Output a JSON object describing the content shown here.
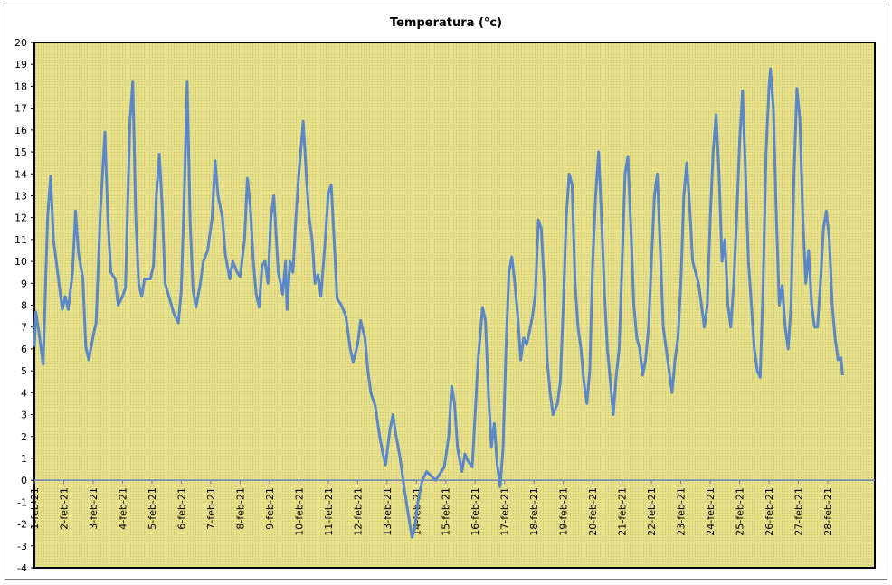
{
  "chart_data": {
    "type": "line",
    "title": "Temperatura (°c)",
    "xlabel": "",
    "ylabel": "",
    "ylim": [
      -4,
      20
    ],
    "yticks": [
      -4,
      -3,
      -2,
      -1,
      0,
      1,
      2,
      3,
      4,
      5,
      6,
      7,
      8,
      9,
      10,
      11,
      12,
      13,
      14,
      15,
      16,
      17,
      18,
      19,
      20
    ],
    "xrange": [
      1,
      29.6
    ],
    "xticks": [
      {
        "x": 1,
        "label": "1-feb-21"
      },
      {
        "x": 2,
        "label": "2-feb-21"
      },
      {
        "x": 3,
        "label": "3-feb-21"
      },
      {
        "x": 4,
        "label": "4-feb-21"
      },
      {
        "x": 5,
        "label": "5-feb-21"
      },
      {
        "x": 6,
        "label": "6-feb-21"
      },
      {
        "x": 7,
        "label": "7-feb-21"
      },
      {
        "x": 8,
        "label": "8-feb-21"
      },
      {
        "x": 9,
        "label": "9-feb-21"
      },
      {
        "x": 10,
        "label": "10-feb-21"
      },
      {
        "x": 11,
        "label": "11-feb-21"
      },
      {
        "x": 12,
        "label": "12-feb-21"
      },
      {
        "x": 13,
        "label": "13-feb-21"
      },
      {
        "x": 14,
        "label": "14-feb-21"
      },
      {
        "x": 15,
        "label": "15-feb-21"
      },
      {
        "x": 16,
        "label": "16-feb-21"
      },
      {
        "x": 17,
        "label": "17-feb-21"
      },
      {
        "x": 18,
        "label": "18-feb-21"
      },
      {
        "x": 19,
        "label": "19-feb-21"
      },
      {
        "x": 20,
        "label": "20-feb-21"
      },
      {
        "x": 21,
        "label": "21-feb-21"
      },
      {
        "x": 22,
        "label": "22-feb-21"
      },
      {
        "x": 23,
        "label": "23-feb-21"
      },
      {
        "x": 24,
        "label": "24-feb-21"
      },
      {
        "x": 25,
        "label": "25-feb-21"
      },
      {
        "x": 26,
        "label": "26-feb-21"
      },
      {
        "x": 27,
        "label": "27-feb-21"
      },
      {
        "x": 28,
        "label": "28-feb-21"
      }
    ],
    "grid": false,
    "legend": "none",
    "colors": {
      "line": "#5b86c8",
      "plot_background": "#e6e08a",
      "zero_line": "#6f7eb5"
    },
    "series": [
      {
        "values": [
          [
            1.0,
            6.1
          ],
          [
            1.05,
            7.7
          ],
          [
            1.15,
            6.8
          ],
          [
            1.3,
            5.3
          ],
          [
            1.45,
            12.0
          ],
          [
            1.55,
            13.9
          ],
          [
            1.65,
            11.0
          ],
          [
            1.8,
            9.4
          ],
          [
            1.95,
            7.8
          ],
          [
            2.05,
            8.4
          ],
          [
            2.15,
            7.8
          ],
          [
            2.3,
            9.5
          ],
          [
            2.4,
            12.3
          ],
          [
            2.5,
            10.4
          ],
          [
            2.65,
            9.2
          ],
          [
            2.75,
            6.1
          ],
          [
            2.85,
            5.5
          ],
          [
            3.0,
            6.6
          ],
          [
            3.1,
            7.2
          ],
          [
            3.25,
            12.4
          ],
          [
            3.4,
            15.9
          ],
          [
            3.5,
            12.0
          ],
          [
            3.6,
            9.5
          ],
          [
            3.75,
            9.2
          ],
          [
            3.85,
            8.0
          ],
          [
            4.0,
            8.4
          ],
          [
            4.1,
            8.8
          ],
          [
            4.25,
            16.4
          ],
          [
            4.35,
            18.2
          ],
          [
            4.45,
            12.0
          ],
          [
            4.55,
            9.0
          ],
          [
            4.65,
            8.4
          ],
          [
            4.75,
            9.2
          ],
          [
            4.95,
            9.2
          ],
          [
            5.05,
            9.8
          ],
          [
            5.15,
            13.0
          ],
          [
            5.25,
            14.9
          ],
          [
            5.35,
            12.5
          ],
          [
            5.45,
            9.0
          ],
          [
            5.6,
            8.3
          ],
          [
            5.75,
            7.6
          ],
          [
            5.9,
            7.2
          ],
          [
            6.0,
            8.7
          ],
          [
            6.1,
            13.0
          ],
          [
            6.2,
            18.2
          ],
          [
            6.3,
            11.8
          ],
          [
            6.4,
            8.7
          ],
          [
            6.5,
            7.9
          ],
          [
            6.65,
            9.0
          ],
          [
            6.75,
            10.0
          ],
          [
            6.9,
            10.5
          ],
          [
            7.05,
            12.0
          ],
          [
            7.15,
            14.6
          ],
          [
            7.25,
            13.0
          ],
          [
            7.4,
            12.0
          ],
          [
            7.5,
            10.3
          ],
          [
            7.65,
            9.2
          ],
          [
            7.75,
            10.0
          ],
          [
            7.9,
            9.5
          ],
          [
            8.0,
            9.3
          ],
          [
            8.15,
            11.0
          ],
          [
            8.25,
            13.8
          ],
          [
            8.35,
            12.5
          ],
          [
            8.45,
            10.0
          ],
          [
            8.55,
            8.5
          ],
          [
            8.65,
            7.9
          ],
          [
            8.75,
            9.8
          ],
          [
            8.85,
            10.0
          ],
          [
            8.95,
            9.0
          ],
          [
            9.05,
            12.0
          ],
          [
            9.15,
            13.0
          ],
          [
            9.3,
            9.5
          ],
          [
            9.45,
            8.5
          ],
          [
            9.55,
            10.0
          ],
          [
            9.6,
            7.8
          ],
          [
            9.7,
            10.0
          ],
          [
            9.8,
            9.5
          ],
          [
            9.9,
            12.0
          ],
          [
            10.0,
            14.0
          ],
          [
            10.15,
            16.4
          ],
          [
            10.25,
            14.0
          ],
          [
            10.35,
            12.0
          ],
          [
            10.45,
            11.0
          ],
          [
            10.55,
            9.0
          ],
          [
            10.65,
            9.4
          ],
          [
            10.75,
            8.4
          ],
          [
            10.9,
            11.0
          ],
          [
            11.0,
            13.1
          ],
          [
            11.1,
            13.5
          ],
          [
            11.2,
            11.0
          ],
          [
            11.3,
            8.3
          ],
          [
            11.45,
            8.0
          ],
          [
            11.6,
            7.5
          ],
          [
            11.75,
            6.0
          ],
          [
            11.85,
            5.4
          ],
          [
            12.0,
            6.2
          ],
          [
            12.1,
            7.3
          ],
          [
            12.25,
            6.5
          ],
          [
            12.35,
            5.0
          ],
          [
            12.45,
            4.0
          ],
          [
            12.6,
            3.4
          ],
          [
            12.75,
            2.0
          ],
          [
            12.85,
            1.3
          ],
          [
            12.95,
            0.7
          ],
          [
            13.1,
            2.3
          ],
          [
            13.2,
            3.0
          ],
          [
            13.3,
            2.1
          ],
          [
            13.45,
            1.0
          ],
          [
            13.6,
            -0.5
          ],
          [
            13.75,
            -1.8
          ],
          [
            13.85,
            -2.6
          ],
          [
            13.95,
            -2.2
          ],
          [
            14.05,
            -1.0
          ],
          [
            14.2,
            0.0
          ],
          [
            14.35,
            0.4
          ],
          [
            14.5,
            0.2
          ],
          [
            14.65,
            0.0
          ],
          [
            14.8,
            0.3
          ],
          [
            14.95,
            0.6
          ],
          [
            15.1,
            2.0
          ],
          [
            15.2,
            4.3
          ],
          [
            15.3,
            3.5
          ],
          [
            15.4,
            1.5
          ],
          [
            15.55,
            0.4
          ],
          [
            15.65,
            1.2
          ],
          [
            15.75,
            0.9
          ],
          [
            15.9,
            0.6
          ],
          [
            16.0,
            3.0
          ],
          [
            16.1,
            5.5
          ],
          [
            16.25,
            7.9
          ],
          [
            16.35,
            7.3
          ],
          [
            16.45,
            4.0
          ],
          [
            16.55,
            1.5
          ],
          [
            16.65,
            2.6
          ],
          [
            16.75,
            0.7
          ],
          [
            16.85,
            -0.3
          ],
          [
            16.95,
            1.5
          ],
          [
            17.05,
            6.0
          ],
          [
            17.15,
            9.5
          ],
          [
            17.25,
            10.2
          ],
          [
            17.35,
            9.0
          ],
          [
            17.45,
            7.5
          ],
          [
            17.55,
            5.5
          ],
          [
            17.65,
            6.5
          ],
          [
            17.75,
            6.2
          ],
          [
            17.85,
            6.8
          ],
          [
            17.95,
            7.5
          ],
          [
            18.05,
            8.5
          ],
          [
            18.15,
            11.9
          ],
          [
            18.25,
            11.5
          ],
          [
            18.35,
            9.0
          ],
          [
            18.45,
            5.5
          ],
          [
            18.55,
            4.0
          ],
          [
            18.65,
            3.0
          ],
          [
            18.8,
            3.5
          ],
          [
            18.9,
            4.5
          ],
          [
            19.0,
            8.0
          ],
          [
            19.1,
            12.0
          ],
          [
            19.2,
            14.0
          ],
          [
            19.3,
            13.5
          ],
          [
            19.4,
            9.0
          ],
          [
            19.5,
            7.0
          ],
          [
            19.6,
            6.0
          ],
          [
            19.7,
            4.5
          ],
          [
            19.8,
            3.5
          ],
          [
            19.9,
            5.0
          ],
          [
            20.0,
            10.0
          ],
          [
            20.1,
            13.0
          ],
          [
            20.2,
            15.0
          ],
          [
            20.3,
            12.0
          ],
          [
            20.4,
            8.5
          ],
          [
            20.5,
            6.0
          ],
          [
            20.6,
            4.5
          ],
          [
            20.7,
            3.0
          ],
          [
            20.8,
            4.8
          ],
          [
            20.9,
            6.0
          ],
          [
            21.0,
            10.0
          ],
          [
            21.1,
            14.0
          ],
          [
            21.2,
            14.8
          ],
          [
            21.3,
            11.5
          ],
          [
            21.4,
            8.0
          ],
          [
            21.5,
            6.5
          ],
          [
            21.6,
            6.0
          ],
          [
            21.7,
            4.8
          ],
          [
            21.8,
            5.5
          ],
          [
            21.9,
            7.0
          ],
          [
            22.0,
            10.0
          ],
          [
            22.1,
            13.0
          ],
          [
            22.2,
            14.0
          ],
          [
            22.3,
            10.5
          ],
          [
            22.4,
            7.0
          ],
          [
            22.5,
            6.0
          ],
          [
            22.6,
            5.0
          ],
          [
            22.7,
            4.0
          ],
          [
            22.8,
            5.5
          ],
          [
            22.9,
            6.5
          ],
          [
            23.0,
            9.0
          ],
          [
            23.1,
            13.0
          ],
          [
            23.2,
            14.5
          ],
          [
            23.3,
            12.5
          ],
          [
            23.4,
            10.0
          ],
          [
            23.5,
            9.5
          ],
          [
            23.6,
            9.0
          ],
          [
            23.7,
            8.0
          ],
          [
            23.8,
            7.0
          ],
          [
            23.9,
            8.0
          ],
          [
            24.0,
            12.0
          ],
          [
            24.1,
            15.0
          ],
          [
            24.2,
            16.7
          ],
          [
            24.3,
            14.0
          ],
          [
            24.4,
            10.0
          ],
          [
            24.5,
            11.0
          ],
          [
            24.6,
            8.0
          ],
          [
            24.7,
            7.0
          ],
          [
            24.8,
            9.0
          ],
          [
            24.9,
            12.0
          ],
          [
            25.0,
            15.5
          ],
          [
            25.1,
            17.8
          ],
          [
            25.2,
            14.0
          ],
          [
            25.3,
            10.0
          ],
          [
            25.4,
            8.0
          ],
          [
            25.5,
            6.0
          ],
          [
            25.6,
            5.0
          ],
          [
            25.7,
            4.7
          ],
          [
            25.8,
            9.0
          ],
          [
            25.9,
            15.0
          ],
          [
            26.0,
            18.0
          ],
          [
            26.05,
            18.8
          ],
          [
            26.15,
            17.0
          ],
          [
            26.25,
            12.0
          ],
          [
            26.35,
            8.0
          ],
          [
            26.45,
            8.9
          ],
          [
            26.55,
            7.0
          ],
          [
            26.65,
            6.0
          ],
          [
            26.75,
            8.0
          ],
          [
            26.85,
            14.0
          ],
          [
            26.95,
            17.9
          ],
          [
            27.05,
            16.5
          ],
          [
            27.15,
            12.0
          ],
          [
            27.25,
            9.0
          ],
          [
            27.35,
            10.5
          ],
          [
            27.45,
            8.0
          ],
          [
            27.55,
            7.0
          ],
          [
            27.65,
            7.0
          ],
          [
            27.75,
            9.0
          ],
          [
            27.85,
            11.5
          ],
          [
            27.95,
            12.3
          ],
          [
            28.05,
            11.0
          ],
          [
            28.15,
            8.0
          ],
          [
            28.25,
            6.5
          ],
          [
            28.35,
            5.5
          ],
          [
            28.45,
            5.6
          ],
          [
            28.5,
            4.8
          ]
        ]
      }
    ]
  }
}
